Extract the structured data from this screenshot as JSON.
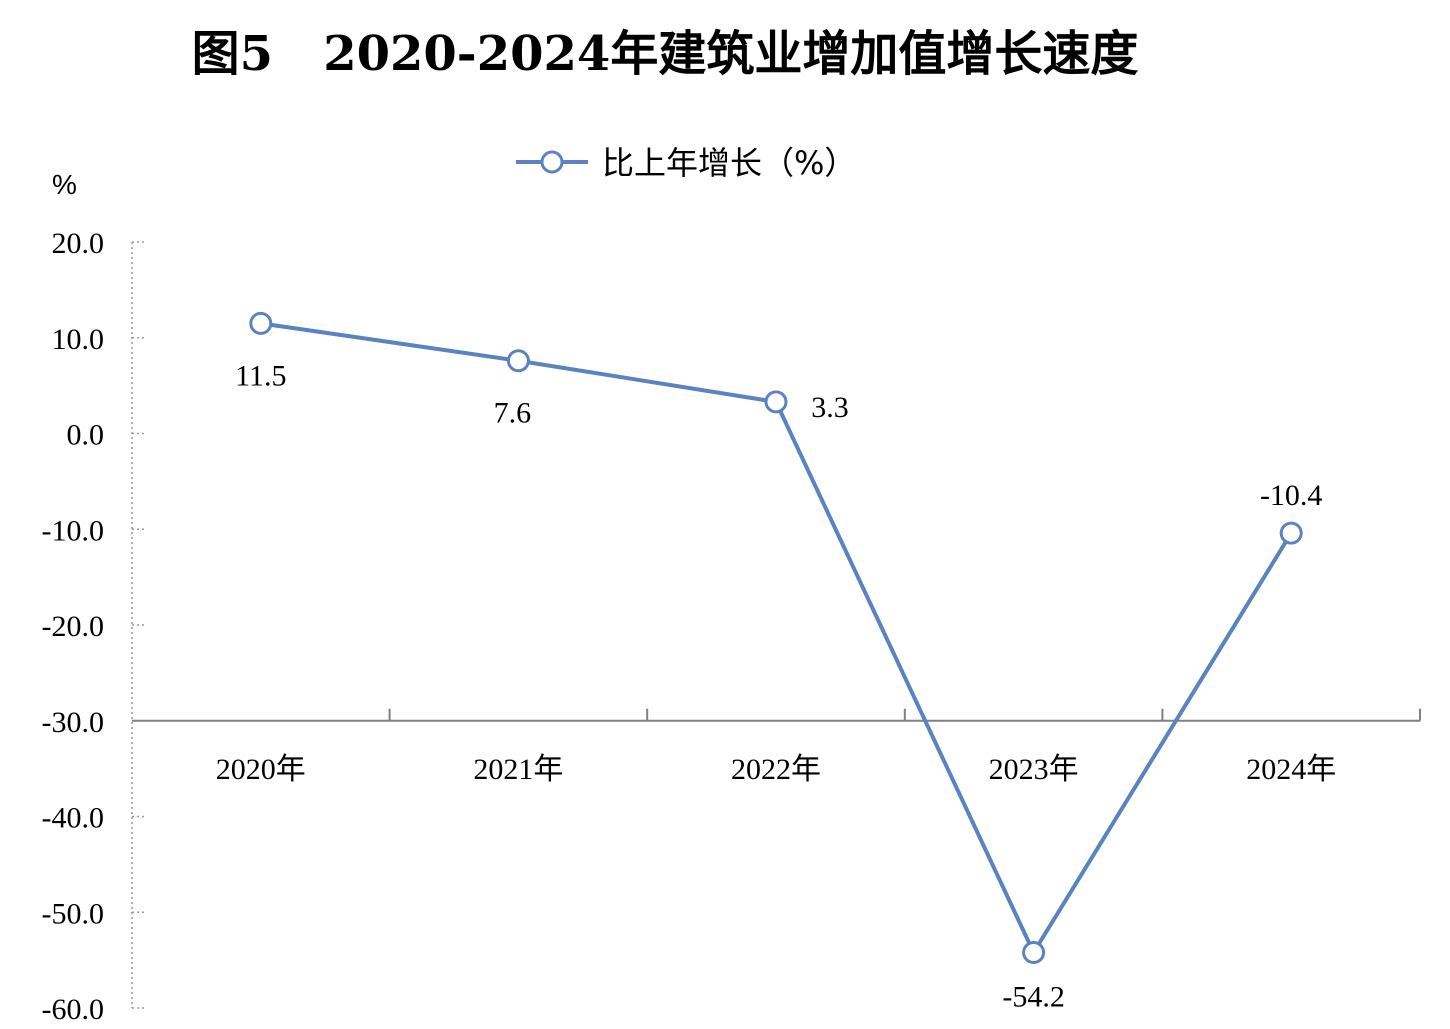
{
  "chart_data": {
    "type": "line",
    "title": "图5   2020-2024年建筑业增加值增长速度",
    "ylabel": "%",
    "xlabel": "",
    "categories": [
      "2020年",
      "2021年",
      "2022年",
      "2023年",
      "2024年"
    ],
    "series": [
      {
        "name": "比上年增长（%）",
        "values": [
          11.5,
          7.6,
          3.3,
          -54.2,
          -10.4
        ],
        "labels": [
          "11.5",
          "7.6",
          "3.3",
          "-54.2",
          "-10.4"
        ]
      }
    ],
    "ylim": [
      -60,
      20
    ],
    "yticks": [
      20,
      10,
      0,
      -10,
      -20,
      -30,
      -40,
      -50,
      -60
    ],
    "ytick_labels": [
      "20.0",
      "10.0",
      "0.0",
      "-10.0",
      "-20.0",
      "-30.0",
      "-40.0",
      "-50.0",
      "-60.0"
    ],
    "category_axis_at": -30,
    "grid": false,
    "legend": "top-center",
    "colors": {
      "line": "#5b83c0",
      "axis": "#808080",
      "marker_fill": "#ffffff"
    }
  }
}
